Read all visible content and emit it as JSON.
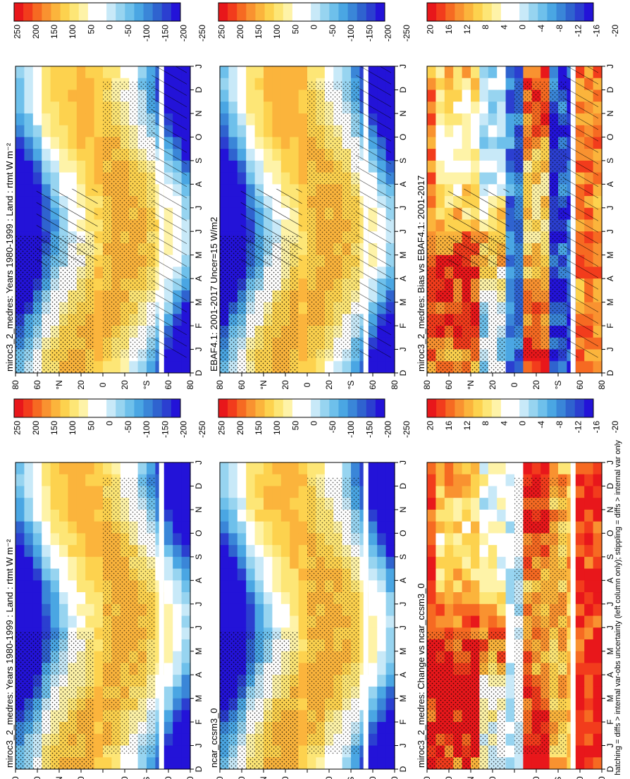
{
  "figure": {
    "footnote": "hatching = diffs > internal var-obs uncertainty (left column only); stippling = diffs > internal var only"
  },
  "chart_data": [
    {
      "type": "heatmap",
      "id": "p1",
      "title": "miroc3_2_medres: Years 1980-1999 : Land : rtmt W m⁻²",
      "x": [
        "D",
        "J",
        "F",
        "M",
        "A",
        "M",
        "J",
        "J",
        "A",
        "S",
        "O",
        "N",
        "D",
        "J"
      ],
      "y_ticks": [
        "80",
        "60",
        "°N",
        "20",
        "0",
        "20",
        "°S",
        "60",
        "80"
      ],
      "colorbar_ticks": [
        "250",
        "200",
        "150",
        "100",
        "50",
        "0",
        "-50",
        "-100",
        "-150",
        "-200",
        "-250"
      ],
      "kind": "climatology",
      "hatching": true,
      "stippling": true
    },
    {
      "type": "heatmap",
      "id": "p2",
      "title": "miroc3_2_medres: Years 1980-1999 : Land : rtmt W m⁻²",
      "x": [
        "D",
        "J",
        "F",
        "M",
        "A",
        "M",
        "J",
        "J",
        "A",
        "S",
        "O",
        "N",
        "D",
        "J"
      ],
      "y_ticks": [
        "80",
        "60",
        "°N",
        "20",
        "0",
        "20",
        "°S",
        "60",
        "80"
      ],
      "colorbar_ticks": [
        "250",
        "200",
        "150",
        "100",
        "50",
        "0",
        "-50",
        "-100",
        "-150",
        "-200",
        "-250"
      ],
      "kind": "climatology",
      "hatching": false,
      "stippling": true
    },
    {
      "type": "heatmap",
      "id": "p3",
      "title": "EBAF4.1: 2001-2017 Uncer=15 W/m2",
      "x": [
        "D",
        "J",
        "F",
        "M",
        "A",
        "M",
        "J",
        "J",
        "A",
        "S",
        "O",
        "N",
        "D",
        "J"
      ],
      "y_ticks": [
        "80",
        "60",
        "°N",
        "20",
        "0",
        "20",
        "°S",
        "60",
        "80"
      ],
      "colorbar_ticks": [
        "250",
        "200",
        "150",
        "100",
        "50",
        "0",
        "-50",
        "-100",
        "-150",
        "-200",
        "-250"
      ],
      "kind": "climatology",
      "hatching": true,
      "stippling": true
    },
    {
      "type": "heatmap",
      "id": "p4",
      "title": "ncar_ccsm3_0",
      "x": [
        "D",
        "J",
        "F",
        "M",
        "A",
        "M",
        "J",
        "J",
        "A",
        "S",
        "O",
        "N",
        "D",
        "J"
      ],
      "y_ticks": [
        "80",
        "60",
        "°N",
        "20",
        "0",
        "20",
        "°S",
        "60",
        "80"
      ],
      "colorbar_ticks": [
        "250",
        "200",
        "150",
        "100",
        "50",
        "0",
        "-50",
        "-100",
        "-150",
        "-200",
        "-250"
      ],
      "kind": "climatology",
      "hatching": false,
      "stippling": true
    },
    {
      "type": "heatmap",
      "id": "p5",
      "title": "miroc3_2_medres: Bias vs EBAF4.1: 2001-2017",
      "x": [
        "D",
        "J",
        "F",
        "M",
        "A",
        "M",
        "J",
        "J",
        "A",
        "S",
        "O",
        "N",
        "D",
        "J"
      ],
      "y_ticks": [
        "80",
        "60",
        "°N",
        "20",
        "0",
        "20",
        "°S",
        "60",
        "80"
      ],
      "colorbar_ticks": [
        "20",
        "16",
        "12",
        "8",
        "4",
        "0",
        "-4",
        "-8",
        "-12",
        "-16",
        "-20"
      ],
      "kind": "bias",
      "hatching": true,
      "stippling": true
    },
    {
      "type": "heatmap",
      "id": "p6",
      "title": "miroc3_2_medres: Change vs ncar_ccsm3_0",
      "x": [
        "D",
        "J",
        "F",
        "M",
        "A",
        "M",
        "J",
        "J",
        "A",
        "S",
        "O",
        "N",
        "D",
        "J"
      ],
      "y_ticks": [
        "80",
        "60",
        "°N",
        "20",
        "0",
        "20",
        "°S",
        "60",
        "80"
      ],
      "colorbar_ticks": [
        "20",
        "16",
        "12",
        "8",
        "4",
        "0",
        "-4",
        "-8",
        "-12",
        "-16",
        "-20"
      ],
      "kind": "change",
      "hatching": false,
      "stippling": true
    }
  ],
  "colors": {
    "scale": [
      "#e8171b",
      "#f23c1c",
      "#f66a22",
      "#f99230",
      "#fbb43c",
      "#fdd24e",
      "#fde676",
      "#fef3a8",
      "#ffffff",
      "#ffffff",
      "#c8e9f8",
      "#97d4f0",
      "#6ec0eb",
      "#4aa6e3",
      "#3a86d8",
      "#2f63cf",
      "#2b3fd0",
      "#2313d8"
    ],
    "gap": "#ffffff"
  }
}
